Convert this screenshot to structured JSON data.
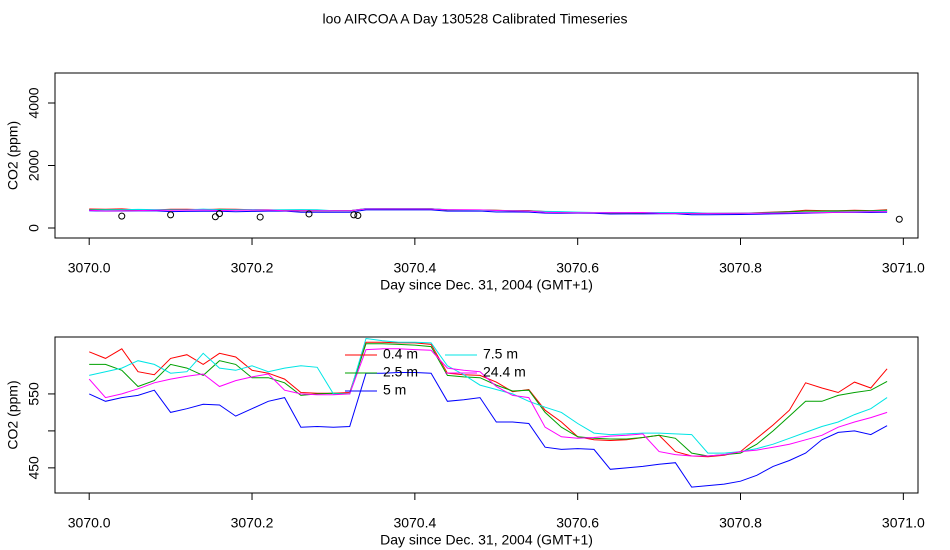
{
  "chart_data": [
    {
      "type": "line",
      "title": "loo AIRCOA A  Day 130528  Calibrated Timeseries",
      "xlabel": "Day since Dec. 31, 2004 (GMT+1)",
      "ylabel": "CO2 (ppm)",
      "xlim": [
        3069.958,
        3071.018
      ],
      "xticks": [
        {
          "value": 3070,
          "label": "3070.0"
        },
        3070.2,
        3070.4,
        3070.6,
        3070.8,
        {
          "value": 3071,
          "label": "3071.0"
        }
      ],
      "ylim": [
        -320,
        4960
      ],
      "yticks": [
        0,
        2000,
        4000
      ],
      "x": [
        3070.0,
        3070.02,
        3070.04,
        3070.06,
        3070.08,
        3070.1,
        3070.12,
        3070.14,
        3070.16,
        3070.18,
        3070.2,
        3070.22,
        3070.24,
        3070.26,
        3070.28,
        3070.3,
        3070.32,
        3070.34,
        3070.36,
        3070.38,
        3070.4,
        3070.42,
        3070.44,
        3070.46,
        3070.48,
        3070.5,
        3070.52,
        3070.54,
        3070.56,
        3070.58,
        3070.6,
        3070.62,
        3070.64,
        3070.66,
        3070.68,
        3070.7,
        3070.72,
        3070.74,
        3070.76,
        3070.78,
        3070.8,
        3070.82,
        3070.84,
        3070.86,
        3070.88,
        3070.9,
        3070.92,
        3070.94,
        3070.96,
        3070.98
      ],
      "series": [
        {
          "color": "#ff0000",
          "values": [
            607,
            598,
            611,
            580,
            576,
            598,
            603,
            590,
            605,
            600,
            582,
            578,
            570,
            552,
            551,
            551,
            552,
            620,
            620,
            619,
            619,
            617,
            578,
            576,
            575,
            566,
            553,
            556,
            528,
            512,
            492,
            488,
            487,
            488,
            491,
            494,
            472,
            466,
            465,
            467,
            472,
            490,
            508,
            528,
            565,
            558,
            552,
            566,
            558,
            584
          ]
        },
        {
          "color": "#00a000",
          "values": [
            590,
            590,
            582,
            560,
            568,
            590,
            585,
            575,
            595,
            590,
            572,
            572,
            565,
            548,
            550,
            551,
            550,
            618,
            618,
            617,
            616,
            614,
            575,
            573,
            572,
            562,
            554,
            555,
            525,
            505,
            492,
            490,
            489,
            489,
            491,
            494,
            490,
            470,
            466,
            468,
            470,
            482,
            500,
            520,
            540,
            540,
            548,
            552,
            555,
            567
          ]
        },
        {
          "color": "#0000ff",
          "values": [
            550,
            540,
            545,
            548,
            555,
            525,
            530,
            536,
            535,
            520,
            530,
            540,
            545,
            505,
            506,
            505,
            506,
            578,
            578,
            579,
            579,
            578,
            540,
            542,
            545,
            512,
            512,
            510,
            478,
            475,
            476,
            475,
            448,
            450,
            452,
            455,
            457,
            424,
            426,
            428,
            432,
            440,
            452,
            460,
            470,
            488,
            498,
            500,
            495,
            507
          ]
        },
        {
          "color": "#00e5e5",
          "values": [
            575,
            580,
            585,
            595,
            590,
            578,
            580,
            605,
            585,
            582,
            588,
            580,
            585,
            588,
            586,
            550,
            550,
            625,
            622,
            620,
            620,
            619,
            588,
            576,
            562,
            556,
            550,
            540,
            532,
            525,
            510,
            497,
            495,
            496,
            497,
            497,
            496,
            495,
            470,
            470,
            472,
            476,
            482,
            490,
            498,
            506,
            512,
            522,
            530,
            545
          ]
        },
        {
          "color": "#ff00ff",
          "values": [
            570,
            545,
            550,
            557,
            565,
            570,
            574,
            577,
            560,
            568,
            573,
            577,
            555,
            550,
            549,
            549,
            550,
            610,
            611,
            611,
            610,
            609,
            585,
            582,
            580,
            560,
            548,
            545,
            505,
            492,
            490,
            491,
            493,
            494,
            496,
            472,
            468,
            466,
            466,
            468,
            472,
            474,
            478,
            482,
            488,
            494,
            505,
            512,
            518,
            525
          ]
        }
      ],
      "points": {
        "color": "#000000",
        "x": [
          3070.04,
          3070.1,
          3070.155,
          3070.16,
          3070.21,
          3070.27,
          3070.325,
          3070.33,
          3070.995
        ],
        "values": [
          380,
          420,
          360,
          460,
          350,
          450,
          420,
          400,
          280
        ]
      }
    },
    {
      "type": "line",
      "xlabel": "Day since Dec. 31, 2004 (GMT+1)",
      "ylabel": "CO2 (ppm)",
      "xlim": [
        3069.958,
        3071.018
      ],
      "xticks": [
        {
          "value": 3070,
          "label": "3070.0"
        },
        3070.2,
        3070.4,
        3070.6,
        3070.8,
        {
          "value": 3071,
          "label": "3071.0"
        }
      ],
      "ylim": [
        416,
        627
      ],
      "yticks": [
        450,
        {
          "value": 500,
          "label": null
        },
        550
      ],
      "legend": "top",
      "x": [
        3070.0,
        3070.02,
        3070.04,
        3070.06,
        3070.08,
        3070.1,
        3070.12,
        3070.14,
        3070.16,
        3070.18,
        3070.2,
        3070.22,
        3070.24,
        3070.26,
        3070.28,
        3070.3,
        3070.32,
        3070.34,
        3070.36,
        3070.38,
        3070.4,
        3070.42,
        3070.44,
        3070.46,
        3070.48,
        3070.5,
        3070.52,
        3070.54,
        3070.56,
        3070.58,
        3070.6,
        3070.62,
        3070.64,
        3070.66,
        3070.68,
        3070.7,
        3070.72,
        3070.74,
        3070.76,
        3070.78,
        3070.8,
        3070.82,
        3070.84,
        3070.86,
        3070.88,
        3070.9,
        3070.92,
        3070.94,
        3070.96,
        3070.98
      ],
      "series": [
        {
          "name": "0.4 m",
          "color": "#ff0000",
          "values": [
            607,
            598,
            611,
            580,
            576,
            598,
            603,
            590,
            605,
            600,
            582,
            578,
            570,
            552,
            551,
            551,
            552,
            620,
            620,
            619,
            619,
            617,
            578,
            576,
            575,
            566,
            553,
            556,
            528,
            512,
            492,
            488,
            487,
            488,
            491,
            494,
            472,
            466,
            465,
            467,
            472,
            490,
            508,
            528,
            565,
            558,
            552,
            566,
            558,
            584
          ]
        },
        {
          "name": "2.5 m",
          "color": "#00a000",
          "values": [
            590,
            590,
            582,
            560,
            568,
            590,
            585,
            575,
            595,
            590,
            572,
            572,
            565,
            548,
            550,
            551,
            550,
            618,
            618,
            617,
            616,
            614,
            575,
            573,
            572,
            562,
            554,
            555,
            525,
            505,
            492,
            490,
            489,
            489,
            491,
            494,
            490,
            470,
            466,
            468,
            470,
            482,
            500,
            520,
            540,
            540,
            548,
            552,
            555,
            567
          ]
        },
        {
          "name": "5 m",
          "color": "#0000ff",
          "values": [
            550,
            540,
            545,
            548,
            555,
            525,
            530,
            536,
            535,
            520,
            530,
            540,
            545,
            505,
            506,
            505,
            506,
            578,
            578,
            579,
            579,
            578,
            540,
            542,
            545,
            512,
            512,
            510,
            478,
            475,
            476,
            475,
            448,
            450,
            452,
            455,
            457,
            424,
            426,
            428,
            432,
            440,
            452,
            460,
            470,
            488,
            498,
            500,
            495,
            507
          ]
        },
        {
          "name": "7.5 m",
          "color": "#00e5e5",
          "values": [
            575,
            580,
            585,
            595,
            590,
            578,
            580,
            605,
            585,
            582,
            588,
            580,
            585,
            588,
            586,
            550,
            550,
            625,
            622,
            620,
            620,
            619,
            588,
            576,
            562,
            556,
            550,
            540,
            532,
            525,
            510,
            497,
            495,
            496,
            497,
            497,
            496,
            495,
            470,
            470,
            472,
            476,
            482,
            490,
            498,
            506,
            512,
            522,
            530,
            545
          ]
        },
        {
          "name": "24.4 m",
          "color": "#ff00ff",
          "values": [
            570,
            545,
            550,
            557,
            565,
            570,
            574,
            577,
            560,
            568,
            573,
            577,
            555,
            550,
            549,
            549,
            550,
            610,
            611,
            611,
            610,
            609,
            585,
            582,
            580,
            560,
            548,
            545,
            505,
            492,
            490,
            491,
            493,
            494,
            496,
            472,
            468,
            466,
            466,
            468,
            472,
            474,
            478,
            482,
            488,
            494,
            505,
            512,
            518,
            525
          ]
        }
      ]
    }
  ]
}
